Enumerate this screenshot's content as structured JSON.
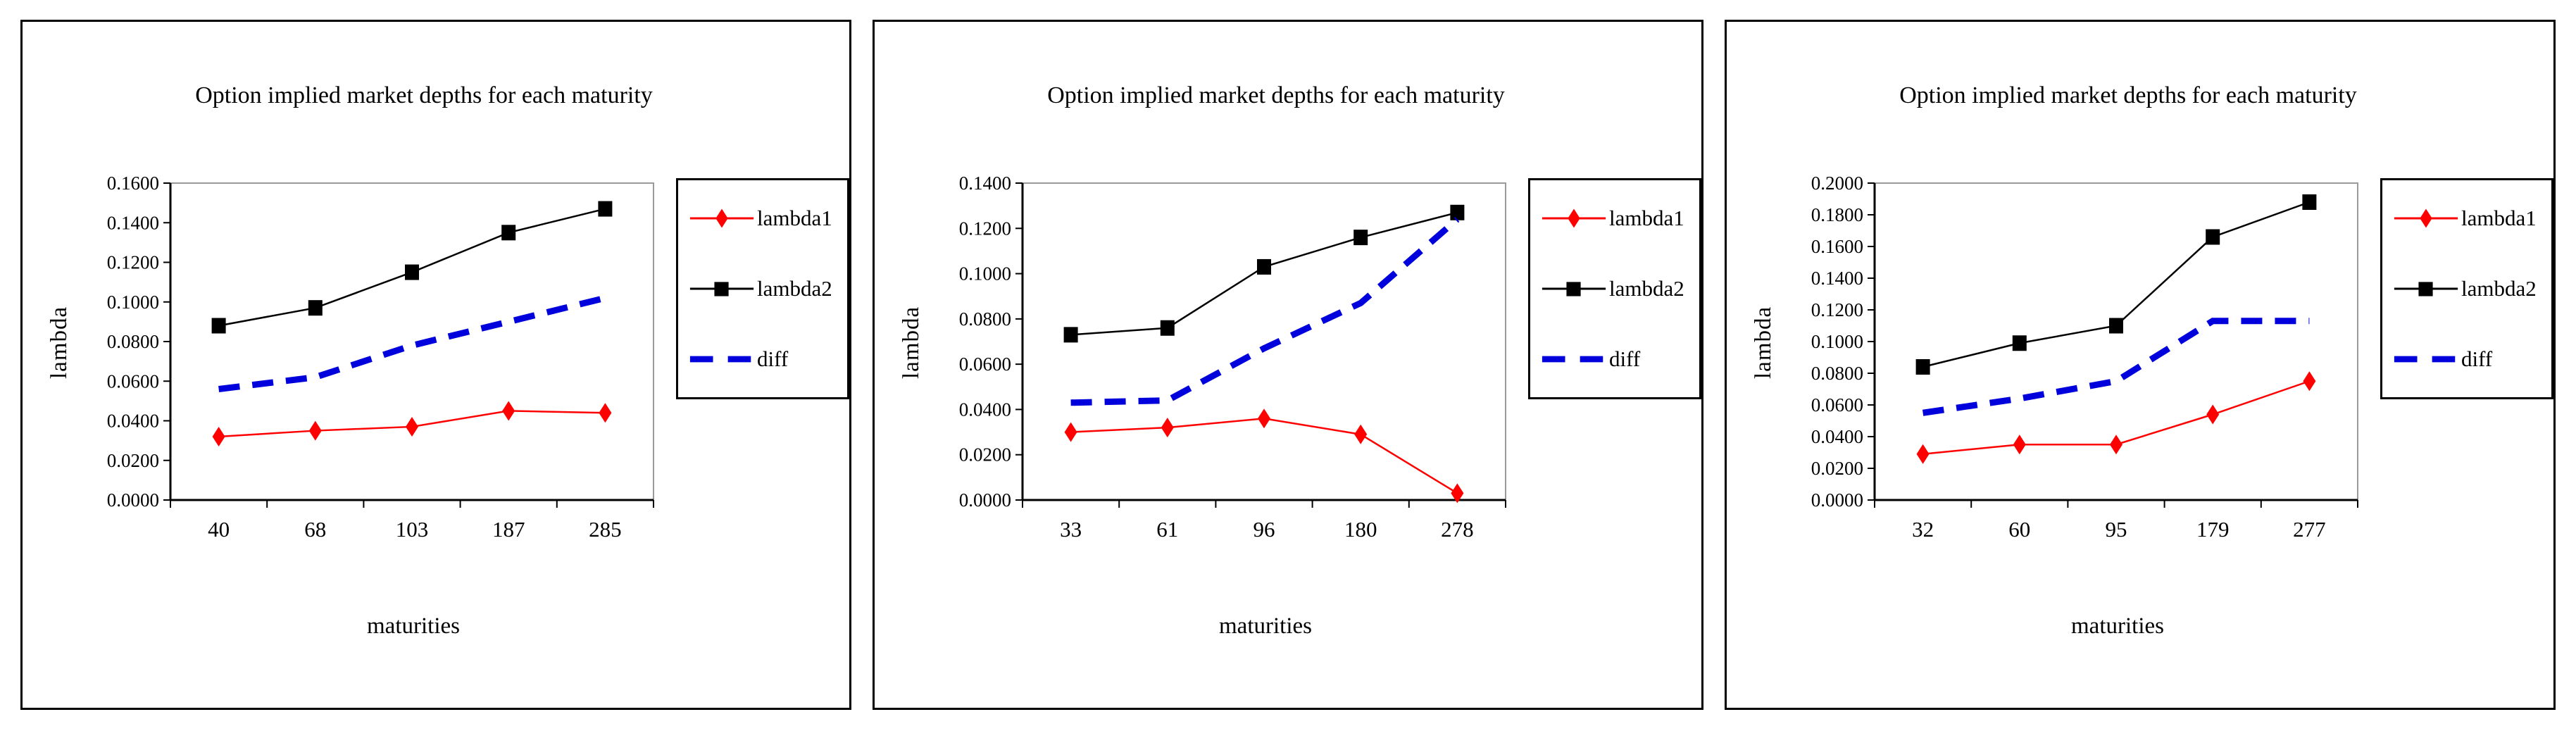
{
  "figure": {
    "background": "#ffffff",
    "panel_border_color": "#000000"
  },
  "chart_data": [
    {
      "type": "line",
      "title": "Option implied market depths for each maturity",
      "xlabel": "maturities",
      "ylabel": "lambda",
      "categories": [
        "40",
        "68",
        "103",
        "187",
        "285"
      ],
      "yticks": [
        "0.0000",
        "0.0200",
        "0.0400",
        "0.0600",
        "0.0800",
        "0.1000",
        "0.1200",
        "0.1400",
        "0.1600"
      ],
      "ylim": [
        0,
        0.16
      ],
      "ystep": 0.02,
      "grid": false,
      "legend_position": "right",
      "series": [
        {
          "name": "lambda1",
          "color": "#ff0000",
          "marker": "diamond",
          "dash": null,
          "width": 2.5,
          "values": [
            0.032,
            0.035,
            0.037,
            0.045,
            0.044
          ]
        },
        {
          "name": "lambda2",
          "color": "#000000",
          "marker": "square",
          "dash": null,
          "width": 2.5,
          "values": [
            0.088,
            0.097,
            0.115,
            0.135,
            0.147
          ]
        },
        {
          "name": "diff",
          "color": "#0000dd",
          "marker": "none",
          "dash": [
            30,
            18
          ],
          "width": 9,
          "values": [
            0.056,
            0.062,
            0.078,
            0.09,
            0.102
          ]
        }
      ]
    },
    {
      "type": "line",
      "title": "Option implied market depths for each maturity",
      "xlabel": "maturities",
      "ylabel": "lambda",
      "categories": [
        "33",
        "61",
        "96",
        "180",
        "278"
      ],
      "yticks": [
        "0.0000",
        "0.0200",
        "0.0400",
        "0.0600",
        "0.0800",
        "0.1000",
        "0.1200",
        "0.1400"
      ],
      "ylim": [
        0,
        0.14
      ],
      "ystep": 0.02,
      "grid": false,
      "legend_position": "right",
      "series": [
        {
          "name": "lambda1",
          "color": "#ff0000",
          "marker": "diamond",
          "dash": null,
          "width": 2.5,
          "values": [
            0.03,
            0.032,
            0.036,
            0.029,
            0.003
          ]
        },
        {
          "name": "lambda2",
          "color": "#000000",
          "marker": "square",
          "dash": null,
          "width": 2.5,
          "values": [
            0.073,
            0.076,
            0.103,
            0.116,
            0.127
          ]
        },
        {
          "name": "diff",
          "color": "#0000dd",
          "marker": "none",
          "dash": [
            30,
            18
          ],
          "width": 9,
          "values": [
            0.043,
            0.044,
            0.067,
            0.087,
            0.124
          ]
        }
      ]
    },
    {
      "type": "line",
      "title": "Option implied market depths for each maturity",
      "xlabel": "maturities",
      "ylabel": "lambda",
      "categories": [
        "32",
        "60",
        "95",
        "179",
        "277"
      ],
      "yticks": [
        "0.0000",
        "0.0200",
        "0.0400",
        "0.0600",
        "0.0800",
        "0.1000",
        "0.1200",
        "0.1400",
        "0.1600",
        "0.1800",
        "0.2000"
      ],
      "ylim": [
        0,
        0.2
      ],
      "ystep": 0.02,
      "grid": false,
      "legend_position": "right",
      "series": [
        {
          "name": "lambda1",
          "color": "#ff0000",
          "marker": "diamond",
          "dash": null,
          "width": 2.5,
          "values": [
            0.029,
            0.035,
            0.035,
            0.054,
            0.075
          ]
        },
        {
          "name": "lambda2",
          "color": "#000000",
          "marker": "square",
          "dash": null,
          "width": 2.5,
          "values": [
            0.084,
            0.099,
            0.11,
            0.166,
            0.188
          ]
        },
        {
          "name": "diff",
          "color": "#0000dd",
          "marker": "none",
          "dash": [
            30,
            18
          ],
          "width": 9,
          "values": [
            0.055,
            0.064,
            0.075,
            0.113,
            0.113
          ]
        }
      ]
    }
  ]
}
